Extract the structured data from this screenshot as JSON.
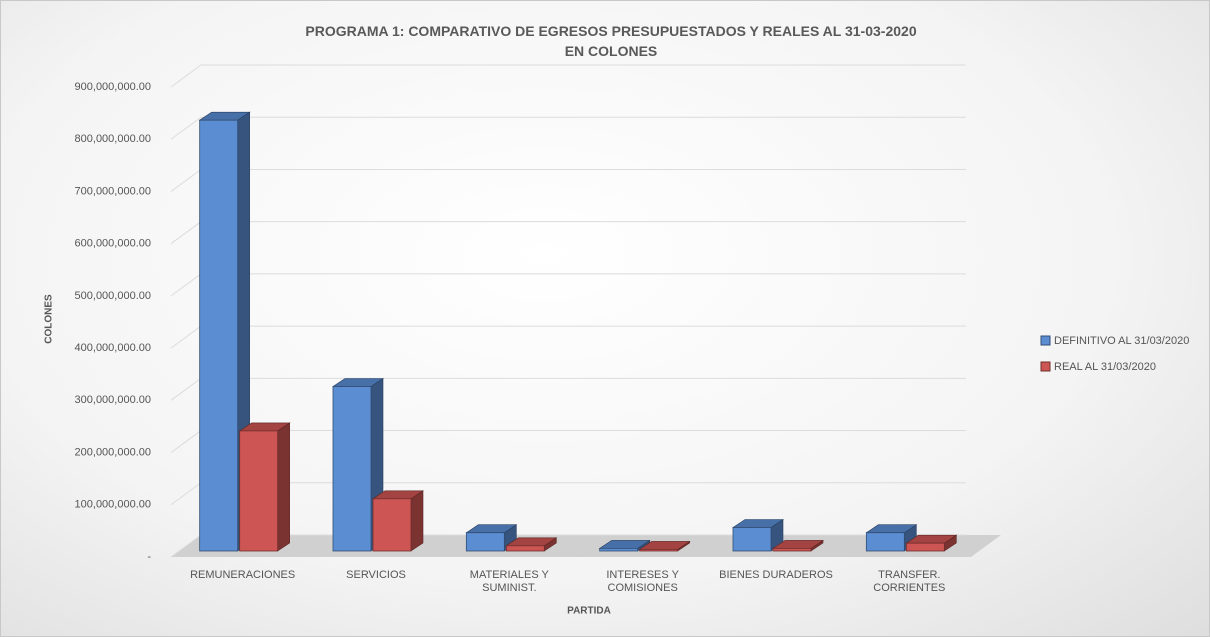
{
  "chart_data": {
    "type": "bar3d",
    "title": "PROGRAMA 1: COMPARATIVO DE EGRESOS PRESUPUESTADOS Y REALES AL 31-03-2020\nEN COLONES",
    "x_label": "PARTIDA",
    "y_label": "COLONES",
    "categories": [
      "REMUNERACIONES",
      "SERVICIOS",
      "MATERIALES Y\nSUMINIST.",
      "INTERESES Y\nCOMISIONES",
      "BIENES DURADEROS",
      "TRANSFER.\nCORRIENTES"
    ],
    "series": [
      {
        "name": "DEFINITIVO AL 31/03/2020",
        "color": "#5b8dd3",
        "values": [
          825000000,
          315000000,
          35000000,
          5000000,
          45000000,
          35000000
        ]
      },
      {
        "name": "REAL AL 31/03/2020",
        "color": "#cd5553",
        "values": [
          230000000,
          100000000,
          10000000,
          3000000,
          5000000,
          15000000
        ]
      }
    ],
    "ylim": [
      0,
      900000000
    ],
    "yticks": [
      {
        "value": 0,
        "label": "-"
      },
      {
        "value": 100000000,
        "label": "100,000,000.00"
      },
      {
        "value": 200000000,
        "label": "200,000,000.00"
      },
      {
        "value": 300000000,
        "label": "300,000,000.00"
      },
      {
        "value": 400000000,
        "label": "400,000,000.00"
      },
      {
        "value": 500000000,
        "label": "500,000,000.00"
      },
      {
        "value": 600000000,
        "label": "600,000,000.00"
      },
      {
        "value": 700000000,
        "label": "700,000,000.00"
      },
      {
        "value": 800000000,
        "label": "800,000,000.00"
      },
      {
        "value": 900000000,
        "label": "900,000,000.00"
      }
    ],
    "grid": true,
    "legend": "right"
  }
}
